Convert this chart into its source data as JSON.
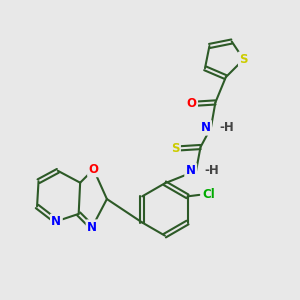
{
  "bg_color": "#e8e8e8",
  "bond_color": "#2d5a27",
  "bond_width": 1.5,
  "atom_colors": {
    "S": "#cccc00",
    "O": "#ff0000",
    "N": "#0000ff",
    "Cl": "#00aa00",
    "C": "#2d5a27",
    "H": "#444444"
  },
  "font_size": 8.5,
  "title": ""
}
